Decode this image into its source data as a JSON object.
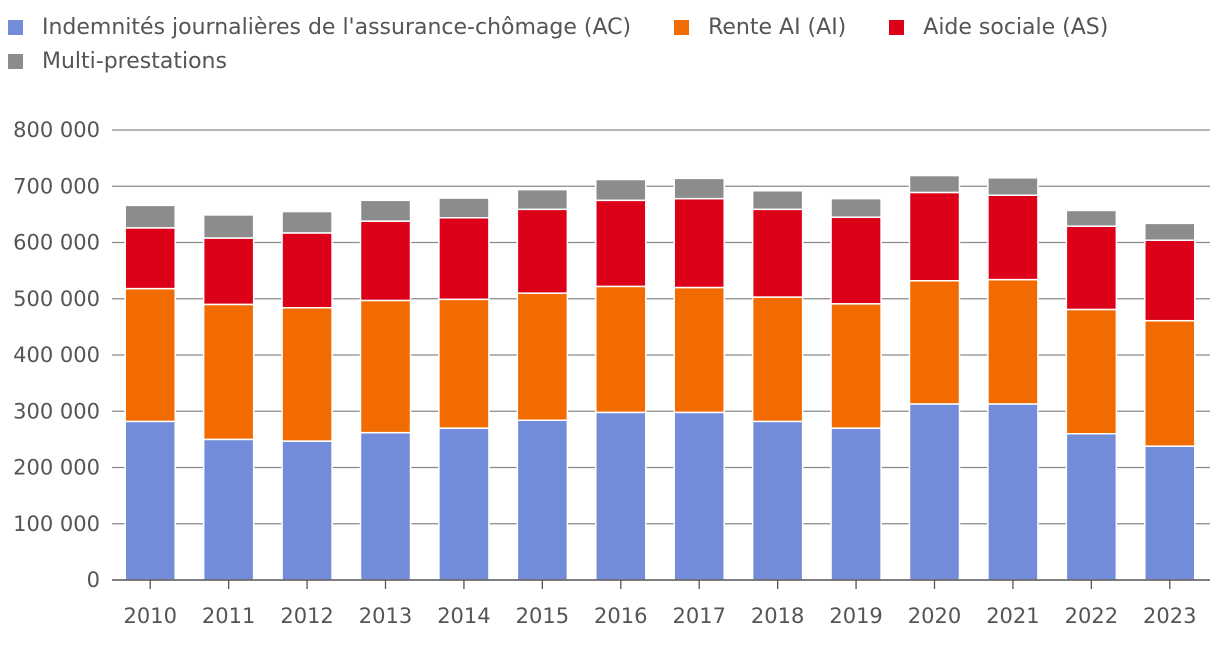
{
  "chart_data": {
    "type": "bar",
    "stacked": true,
    "title": "",
    "xlabel": "",
    "ylabel": "",
    "ylim": [
      0,
      800000
    ],
    "yticks": [
      0,
      100000,
      200000,
      300000,
      400000,
      500000,
      600000,
      700000,
      800000
    ],
    "ytick_labels": [
      "0",
      "100 000",
      "200 000",
      "300 000",
      "400 000",
      "500 000",
      "600 000",
      "700 000",
      "800 000"
    ],
    "grid": true,
    "legend_position": "top-left",
    "categories": [
      "2010",
      "2011",
      "2012",
      "2013",
      "2014",
      "2015",
      "2016",
      "2017",
      "2018",
      "2019",
      "2020",
      "2021",
      "2022",
      "2023"
    ],
    "series": [
      {
        "name": "Indemnités journalières de l'assurance-chômage (AC)",
        "color": "#738cd9",
        "values": [
          282000,
          250000,
          247000,
          262000,
          270000,
          284000,
          298000,
          298000,
          282000,
          270000,
          313000,
          313000,
          260000,
          238000
        ]
      },
      {
        "name": "Rente AI (AI)",
        "color": "#f26b00",
        "values": [
          236000,
          240000,
          237000,
          235000,
          229000,
          226000,
          224000,
          222000,
          221000,
          221000,
          219000,
          221000,
          221000,
          223000
        ]
      },
      {
        "name": "Aide sociale (AS)",
        "color": "#dc0018",
        "values": [
          108000,
          118000,
          133000,
          141000,
          145000,
          149000,
          153000,
          158000,
          156000,
          154000,
          157000,
          150000,
          148000,
          143000
        ]
      },
      {
        "name": "Multi-prestations",
        "color": "#8c8c8c",
        "values": [
          40000,
          41000,
          38000,
          37000,
          35000,
          35000,
          37000,
          36000,
          33000,
          33000,
          30000,
          31000,
          28000,
          30000
        ]
      }
    ]
  }
}
